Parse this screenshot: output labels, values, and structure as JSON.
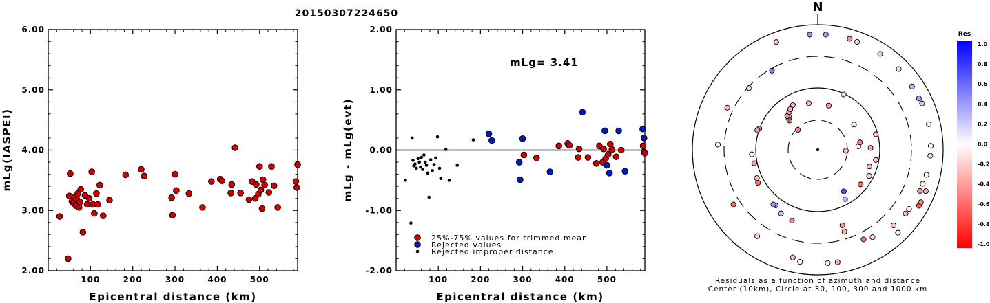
{
  "title": "20150307224650",
  "colors": {
    "in_mean": "#d00000",
    "rejected": "#0018c8",
    "improper": "#000000"
  },
  "chart_data": [
    {
      "type": "scatter",
      "xlabel": "Epicentral distance (km)",
      "ylabel": "mLg(IASPEI)",
      "xlim": [
        0,
        590
      ],
      "ylim": [
        2.0,
        6.0
      ],
      "xticks": [
        "100",
        "200",
        "300",
        "400",
        "500"
      ],
      "yticks": [
        "2.00",
        "3.00",
        "4.00",
        "5.00",
        "6.00"
      ],
      "points": [
        [
          27,
          2.9
        ],
        [
          47,
          2.2
        ],
        [
          50,
          3.24
        ],
        [
          52,
          3.61
        ],
        [
          56,
          3.15
        ],
        [
          60,
          3.12
        ],
        [
          63,
          3.22
        ],
        [
          65,
          3.08
        ],
        [
          68,
          3.18
        ],
        [
          70,
          3.28
        ],
        [
          73,
          3.05
        ],
        [
          75,
          3.14
        ],
        [
          77,
          3.35
        ],
        [
          82,
          2.64
        ],
        [
          87,
          3.25
        ],
        [
          92,
          3.1
        ],
        [
          97,
          3.2
        ],
        [
          103,
          3.64
        ],
        [
          106,
          3.1
        ],
        [
          109,
          2.95
        ],
        [
          114,
          3.28
        ],
        [
          117,
          3.1
        ],
        [
          122,
          3.42
        ],
        [
          130,
          2.91
        ],
        [
          145,
          3.17
        ],
        [
          183,
          3.59
        ],
        [
          220,
          3.68
        ],
        [
          227,
          3.57
        ],
        [
          292,
          3.21
        ],
        [
          294,
          2.92
        ],
        [
          300,
          3.6
        ],
        [
          303,
          3.33
        ],
        [
          333,
          3.28
        ],
        [
          365,
          3.05
        ],
        [
          386,
          3.48
        ],
        [
          407,
          3.52
        ],
        [
          411,
          3.49
        ],
        [
          432,
          3.29
        ],
        [
          434,
          3.43
        ],
        [
          442,
          4.04
        ],
        [
          455,
          3.29
        ],
        [
          475,
          3.18
        ],
        [
          482,
          3.48
        ],
        [
          490,
          3.2
        ],
        [
          492,
          3.43
        ],
        [
          497,
          3.27
        ],
        [
          500,
          3.73
        ],
        [
          503,
          3.34
        ],
        [
          506,
          3.03
        ],
        [
          508,
          3.51
        ],
        [
          512,
          3.42
        ],
        [
          522,
          3.3
        ],
        [
          528,
          3.73
        ],
        [
          534,
          3.41
        ],
        [
          543,
          3.05
        ],
        [
          586,
          3.48
        ],
        [
          588,
          3.38
        ],
        [
          590,
          3.76
        ]
      ]
    },
    {
      "type": "scatter",
      "xlabel": "Epicentral distance (km)",
      "ylabel": "mLg - mLg(evt)",
      "xlim": [
        0,
        590
      ],
      "ylim": [
        -2.0,
        2.0
      ],
      "xticks": [
        "100",
        "200",
        "300",
        "400",
        "500"
      ],
      "yticks": [
        "-2.00",
        "-1.00",
        "0.00",
        "1.00",
        "2.00"
      ],
      "annotation": "mLg= 3.41",
      "legend": [
        "25%-75% values for trimmed mean",
        "Rejected values",
        "Rejected improper distance"
      ],
      "trimmed": [
        [
          303,
          -0.08
        ],
        [
          333,
          -0.13
        ],
        [
          386,
          0.07
        ],
        [
          407,
          0.11
        ],
        [
          411,
          0.08
        ],
        [
          432,
          -0.12
        ],
        [
          434,
          0.02
        ],
        [
          455,
          -0.12
        ],
        [
          475,
          -0.22
        ],
        [
          482,
          0.07
        ],
        [
          490,
          -0.2
        ],
        [
          492,
          0.02
        ],
        [
          497,
          -0.14
        ],
        [
          503,
          -0.07
        ],
        [
          508,
          0.1
        ],
        [
          512,
          0.01
        ],
        [
          522,
          -0.11
        ],
        [
          534,
          0.0
        ],
        [
          586,
          0.07
        ],
        [
          588,
          -0.03
        ],
        [
          590,
          -0.05
        ]
      ],
      "rejected": [
        [
          220,
          0.27
        ],
        [
          227,
          0.16
        ],
        [
          292,
          -0.2
        ],
        [
          294,
          -0.49
        ],
        [
          300,
          0.19
        ],
        [
          365,
          -0.36
        ],
        [
          442,
          0.63
        ],
        [
          495,
          0.32
        ],
        [
          500,
          -0.25
        ],
        [
          506,
          -0.38
        ],
        [
          528,
          0.32
        ],
        [
          543,
          -0.35
        ],
        [
          585,
          0.35
        ],
        [
          588,
          0.2
        ]
      ],
      "improper": [
        [
          22,
          -0.5
        ],
        [
          35,
          -1.21
        ],
        [
          38,
          0.2
        ],
        [
          40,
          -0.17
        ],
        [
          42,
          -0.26
        ],
        [
          45,
          -0.23
        ],
        [
          48,
          -0.3
        ],
        [
          52,
          -0.14
        ],
        [
          55,
          -0.2
        ],
        [
          58,
          -0.28
        ],
        [
          60,
          -0.12
        ],
        [
          63,
          -0.32
        ],
        [
          66,
          -0.08
        ],
        [
          69,
          -0.2
        ],
        [
          72,
          -0.25
        ],
        [
          75,
          -0.38
        ],
        [
          78,
          -0.78
        ],
        [
          82,
          -0.16
        ],
        [
          86,
          -0.34
        ],
        [
          90,
          -0.24
        ],
        [
          94,
          -0.13
        ],
        [
          98,
          0.22
        ],
        [
          103,
          -0.3
        ],
        [
          106,
          -0.47
        ],
        [
          118,
          0.01
        ],
        [
          126,
          -0.5
        ],
        [
          145,
          -0.25
        ],
        [
          183,
          0.17
        ]
      ]
    },
    {
      "type": "scatter",
      "title": "N",
      "subtype": "polar",
      "caption_line1": "Residuals as a function of azimuth and distance",
      "caption_line2": "Center (10km), Circle at 30, 100, 300 and 1000 km",
      "colorbar_title": "Res",
      "colorbar_ticks": [
        "1.0",
        "0.8",
        "0.6",
        "0.4",
        "0.2",
        "0.0",
        "-0.2",
        "-0.4",
        "-0.6",
        "-0.8",
        "-1.0"
      ],
      "residual_points": [
        [
          -45,
          -0.5
        ],
        [
          -44,
          -0.4
        ],
        [
          -43,
          -0.2
        ],
        [
          -41,
          -0.3
        ],
        [
          -42,
          -0.45
        ],
        [
          -37,
          -0.45
        ],
        [
          -34,
          -0.3
        ],
        [
          -29,
          -0.3
        ],
        [
          88,
          -0.35
        ],
        [
          108,
          -0.3
        ],
        [
          129,
          -0.6
        ],
        [
          151,
          0.3
        ],
        [
          117,
          -0.2
        ],
        [
          100,
          -0.25
        ],
        [
          75,
          -0.25
        ],
        [
          25,
          -0.15
        ],
        [
          -70,
          0.45
        ],
        [
          -72,
          -0.4
        ],
        [
          -102,
          -0.4
        ],
        [
          -94,
          -0.05
        ],
        [
          -115,
          -0.25
        ],
        [
          -119,
          -0.55
        ],
        [
          -143,
          0.45
        ],
        [
          -141,
          0.4
        ],
        [
          -150,
          0.25
        ],
        [
          -160,
          -0.5
        ],
        [
          162,
          -0.4
        ],
        [
          162,
          -0.3
        ],
        [
          153,
          -0.5
        ],
        [
          148,
          -0.1
        ],
        [
          135,
          -0.25
        ],
        [
          126,
          -0.25
        ],
        [
          123,
          -0.05
        ],
        [
          112,
          -0.4
        ],
        [
          108,
          -0.1
        ],
        [
          103,
          -0.05
        ],
        [
          93,
          -0.15
        ],
        [
          88,
          0.05
        ],
        [
          63,
          0.35
        ],
        [
          56,
          0.3
        ],
        [
          77,
          0.05
        ],
        [
          66,
          0.2
        ],
        [
          45,
          0.1
        ],
        [
          33,
          0.2
        ],
        [
          20,
          -0.15
        ],
        [
          16,
          -0.45
        ],
        [
          4,
          0.35
        ],
        [
          -4,
          0.45
        ],
        [
          -21,
          -0.3
        ],
        [
          -30,
          0.5
        ],
        [
          -48,
          -0.15
        ],
        [
          -65,
          -0.3
        ],
        [
          -87,
          -0.05
        ],
        [
          -123,
          -0.6
        ],
        [
          -145,
          -0.2
        ],
        [
          -167,
          -0.25
        ],
        [
          -171,
          -0.05
        ],
        [
          175,
          -0.05
        ],
        [
          170,
          -0.3
        ],
        [
          136,
          -0.05
        ],
        [
          119,
          -0.6
        ],
        [
          117,
          -0.45
        ],
        [
          111,
          -0.3
        ],
        [
          92,
          -0.25
        ],
        [
          85,
          -0.05
        ],
        [
          80,
          -0.5
        ],
        [
          55,
          -0.1
        ],
        [
          14,
          -0.4
        ],
        [
          -11,
          -0.25
        ],
        [
          148,
          0.7
        ]
      ]
    }
  ]
}
